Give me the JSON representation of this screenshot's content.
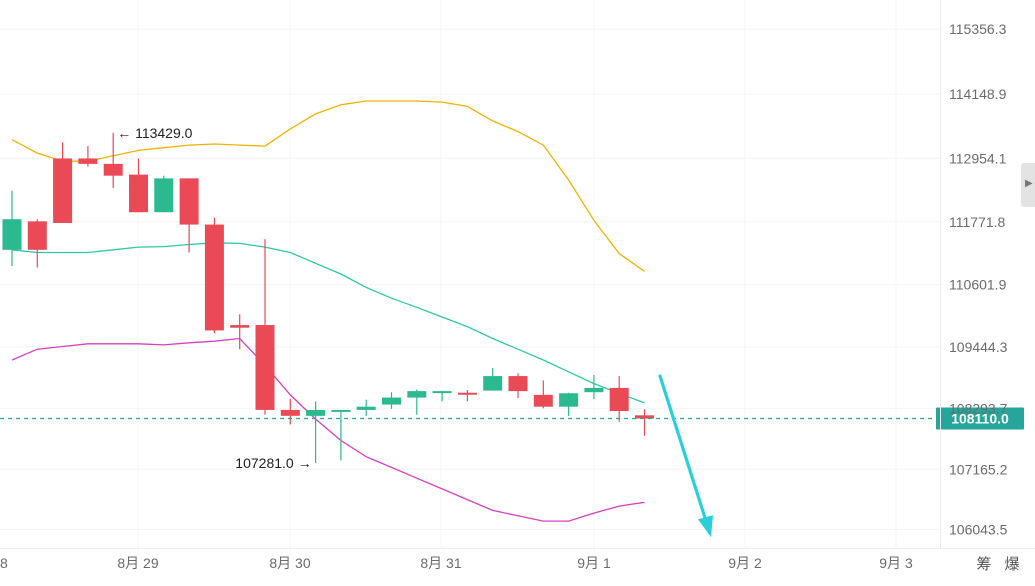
{
  "chart_data": {
    "type": "candlestick",
    "y_axis": {
      "ticks": [
        "115356.3",
        "114148.9",
        "112954.1",
        "111771.8",
        "110601.9",
        "109444.3",
        "108293.7",
        "107165.2",
        "106043.5"
      ],
      "range": [
        105700,
        115900
      ],
      "position": "right"
    },
    "x_axis": {
      "ticks": [
        "8",
        "8月 29",
        "8月 30",
        "8月 31",
        "9月 1",
        "9月 2",
        "9月 3"
      ]
    },
    "candles": [
      {
        "open": 111250,
        "close": 111820,
        "high": 112350,
        "low": 110950
      },
      {
        "open": 111780,
        "close": 111250,
        "high": 111820,
        "low": 110920
      },
      {
        "open": 112950,
        "close": 111750,
        "high": 113250,
        "low": 111750
      },
      {
        "open": 112950,
        "close": 112850,
        "high": 113180,
        "low": 112800
      },
      {
        "open": 112850,
        "close": 112630,
        "high": 113429,
        "low": 112400
      },
      {
        "open": 112650,
        "close": 111950,
        "high": 112950,
        "low": 111950
      },
      {
        "open": 111950,
        "close": 112580,
        "high": 112630,
        "low": 111950
      },
      {
        "open": 112580,
        "close": 111720,
        "high": 112580,
        "low": 111200
      },
      {
        "open": 111720,
        "close": 109750,
        "high": 111850,
        "low": 109700
      },
      {
        "open": 109850,
        "close": 109800,
        "high": 110050,
        "low": 109400
      },
      {
        "open": 109850,
        "close": 108270,
        "high": 111450,
        "low": 108180
      },
      {
        "open": 108270,
        "close": 108160,
        "high": 108480,
        "low": 108000
      },
      {
        "open": 108160,
        "close": 108270,
        "high": 108430,
        "low": 107281
      },
      {
        "open": 108240,
        "close": 108270,
        "high": 108260,
        "low": 107330
      },
      {
        "open": 108270,
        "close": 108330,
        "high": 108460,
        "low": 108160
      },
      {
        "open": 108370,
        "close": 108500,
        "high": 108600,
        "low": 108290
      },
      {
        "open": 108500,
        "close": 108620,
        "high": 108650,
        "low": 108180
      },
      {
        "open": 108600,
        "close": 108620,
        "high": 108620,
        "low": 108430
      },
      {
        "open": 108590,
        "close": 108580,
        "high": 108640,
        "low": 108430
      },
      {
        "open": 108630,
        "close": 108900,
        "high": 109050,
        "low": 108630
      },
      {
        "open": 108900,
        "close": 108620,
        "high": 108950,
        "low": 108490
      },
      {
        "open": 108550,
        "close": 108330,
        "high": 108820,
        "low": 108300
      },
      {
        "open": 108330,
        "close": 108580,
        "high": 108590,
        "low": 108160
      },
      {
        "open": 108600,
        "close": 108680,
        "high": 108920,
        "low": 108470
      },
      {
        "open": 108680,
        "close": 108250,
        "high": 108900,
        "low": 108050
      },
      {
        "open": 108170,
        "close": 108110,
        "high": 108280,
        "low": 107790
      }
    ],
    "bands": {
      "upper": {
        "color": "#f0b400",
        "values": [
          113300,
          113050,
          112900,
          112900,
          113000,
          113100,
          113150,
          113200,
          113220,
          113200,
          113180,
          113500,
          113780,
          113950,
          114020,
          114020,
          114020,
          114000,
          113920,
          113650,
          113450,
          113200,
          112550,
          111800,
          111180,
          110850
        ]
      },
      "middle": {
        "color": "#2bc9a6",
        "values": [
          111250,
          111200,
          111200,
          111200,
          111250,
          111300,
          111310,
          111350,
          111380,
          111370,
          111300,
          111200,
          111000,
          110800,
          110550,
          110350,
          110180,
          110000,
          109820,
          109600,
          109400,
          109200,
          108980,
          108760,
          108580,
          108400
        ]
      },
      "lower": {
        "color": "#d83fbf",
        "values": [
          109200,
          109400,
          109450,
          109500,
          109500,
          109500,
          109480,
          109520,
          109550,
          109600,
          109100,
          108550,
          108100,
          107700,
          107400,
          107200,
          107000,
          106800,
          106600,
          106400,
          106300,
          106200,
          106200,
          106350,
          106480,
          106550
        ]
      }
    },
    "current_price": {
      "value": 108110.0,
      "label": "108110.0",
      "color": "#26a69a"
    },
    "annotations": [
      {
        "label": "113429.0",
        "arrow": "←",
        "value": 113429,
        "candle": 4,
        "side": "right"
      },
      {
        "label": "107281.0",
        "arrow": "→",
        "value": 107281,
        "candle": 12,
        "side": "left"
      }
    ],
    "projection": {
      "color": "#2ad0d8",
      "from_value": 108900,
      "to_value": 105900
    },
    "colors": {
      "up": "#2bba8f",
      "down": "#ea4a56"
    }
  },
  "toolbar": {
    "right_icons": [
      "筹",
      "爆"
    ]
  },
  "side_handle_icon": "arrow-right-icon"
}
